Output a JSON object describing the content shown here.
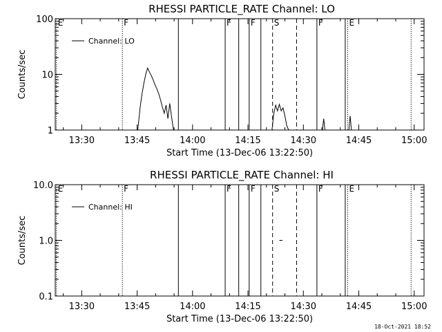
{
  "footer": {
    "timestamp": "18-Oct-2021 18:52"
  },
  "chart_data": [
    {
      "type": "line",
      "title": "RHESSI PARTICLE_RATE Channel: LO",
      "xlabel": "Start Time (13-Dec-06 13:22:50)",
      "ylabel": "Counts/sec",
      "yscale": "log",
      "ylim": [
        1,
        100
      ],
      "xlim": [
        "13:22:50",
        "15:02:40"
      ],
      "xticks": [
        "13:30",
        "13:45",
        "14:00",
        "14:15",
        "14:30",
        "14:45",
        "15:00"
      ],
      "yticks": [
        "1",
        "10",
        "100"
      ],
      "legend": {
        "placement": "top-left",
        "entries": [
          "Channel: LO"
        ]
      },
      "markers": [
        {
          "time": "13:23:10",
          "label": "E",
          "style": "dotted"
        },
        {
          "time": "13:41:00",
          "label": "F",
          "style": "dotted"
        },
        {
          "time": "13:56:10",
          "label": "",
          "style": "solid"
        },
        {
          "time": "14:08:50",
          "label": "F",
          "style": "solid"
        },
        {
          "time": "14:12:30",
          "label": "",
          "style": "solid"
        },
        {
          "time": "14:15:20",
          "label": "F",
          "style": "solid"
        },
        {
          "time": "14:18:30",
          "label": "",
          "style": "solid"
        },
        {
          "time": "14:21:40",
          "label": "S",
          "style": "dashed"
        },
        {
          "time": "14:28:10",
          "label": "",
          "style": "dashed"
        },
        {
          "time": "14:33:40",
          "label": "F",
          "style": "solid"
        },
        {
          "time": "14:41:20",
          "label": "",
          "style": "solid"
        },
        {
          "time": "14:42:00",
          "label": "E",
          "style": "dotted"
        },
        {
          "time": "14:59:10",
          "label": "",
          "style": "dotted"
        }
      ],
      "series": [
        {
          "name": "Channel: LO",
          "segments": [
            [
              [
                "13:45:10",
                1.0
              ],
              [
                "13:45:50",
                2.6
              ],
              [
                "13:46:20",
                4.5
              ],
              [
                "13:46:50",
                7.0
              ],
              [
                "13:47:20",
                10.0
              ],
              [
                "13:47:50",
                13.0
              ],
              [
                "13:48:20",
                11.0
              ],
              [
                "13:48:50",
                9.5
              ],
              [
                "13:49:20",
                8.0
              ],
              [
                "13:49:50",
                6.5
              ],
              [
                "13:50:20",
                5.5
              ],
              [
                "13:50:50",
                4.5
              ],
              [
                "13:51:20",
                3.5
              ],
              [
                "13:51:50",
                2.6
              ],
              [
                "13:52:20",
                2.0
              ],
              [
                "13:52:50",
                2.8
              ],
              [
                "13:53:20",
                1.6
              ],
              [
                "13:53:50",
                3.0
              ],
              [
                "13:54:20",
                1.7
              ],
              [
                "13:54:50",
                1.0
              ]
            ],
            [
              [
                "14:21:30",
                1.0
              ],
              [
                "14:22:00",
                2.0
              ],
              [
                "14:22:30",
                2.8
              ],
              [
                "14:23:00",
                2.2
              ],
              [
                "14:23:30",
                2.9
              ],
              [
                "14:24:00",
                2.2
              ],
              [
                "14:24:30",
                2.5
              ],
              [
                "14:25:00",
                1.8
              ],
              [
                "14:25:30",
                1.2
              ],
              [
                "14:26:00",
                1.0
              ]
            ],
            [
              [
                "14:35:10",
                1.0
              ],
              [
                "14:35:30",
                1.6
              ],
              [
                "14:35:50",
                1.0
              ]
            ],
            [
              [
                "14:42:20",
                1.0
              ],
              [
                "14:42:40",
                1.8
              ],
              [
                "14:43:00",
                1.0
              ]
            ]
          ]
        }
      ]
    },
    {
      "type": "line",
      "title": "RHESSI PARTICLE_RATE Channel: HI",
      "xlabel": "Start Time (13-Dec-06 13:22:50)",
      "ylabel": "Counts/sec",
      "yscale": "log",
      "ylim": [
        0.1,
        10.0
      ],
      "xlim": [
        "13:22:50",
        "15:02:40"
      ],
      "xticks": [
        "13:30",
        "13:45",
        "14:00",
        "14:15",
        "14:30",
        "14:45",
        "15:00"
      ],
      "yticks": [
        "0.1",
        "1.0",
        "10.0"
      ],
      "legend": {
        "placement": "top-left",
        "entries": [
          "Channel: HI"
        ]
      },
      "markers": [
        {
          "time": "13:23:10",
          "label": "E",
          "style": "dotted"
        },
        {
          "time": "13:41:00",
          "label": "F",
          "style": "dotted"
        },
        {
          "time": "13:56:10",
          "label": "",
          "style": "solid"
        },
        {
          "time": "14:08:50",
          "label": "F",
          "style": "solid"
        },
        {
          "time": "14:12:30",
          "label": "",
          "style": "solid"
        },
        {
          "time": "14:15:20",
          "label": "F",
          "style": "solid"
        },
        {
          "time": "14:18:30",
          "label": "",
          "style": "solid"
        },
        {
          "time": "14:21:40",
          "label": "S",
          "style": "dashed"
        },
        {
          "time": "14:28:10",
          "label": "",
          "style": "dashed"
        },
        {
          "time": "14:33:40",
          "label": "F",
          "style": "solid"
        },
        {
          "time": "14:41:20",
          "label": "",
          "style": "solid"
        },
        {
          "time": "14:42:00",
          "label": "E",
          "style": "dotted"
        },
        {
          "time": "14:59:10",
          "label": "",
          "style": "dotted"
        }
      ],
      "series": [
        {
          "name": "Channel: HI",
          "segments": [
            [
              [
                "14:23:30",
                1.0
              ],
              [
                "14:24:20",
                1.0
              ]
            ]
          ]
        }
      ]
    }
  ]
}
